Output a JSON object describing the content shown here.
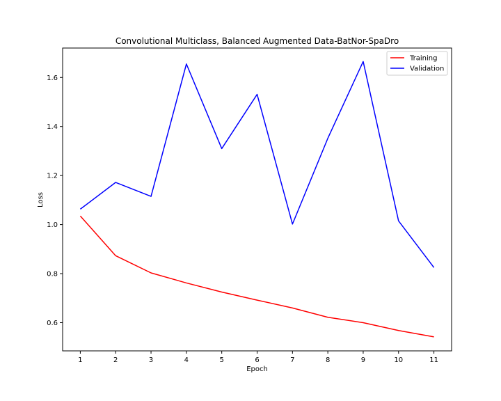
{
  "chart_data": {
    "type": "line",
    "title": "Convolutional Multiclass, Balanced Augmented Data-BatNor-SpaDro",
    "xlabel": "Epoch",
    "ylabel": "Loss",
    "x": [
      1,
      2,
      3,
      4,
      5,
      6,
      7,
      8,
      9,
      10,
      11
    ],
    "xlim": [
      0.5,
      11.5
    ],
    "ylim": [
      0.485,
      1.72
    ],
    "xticks": [
      1,
      2,
      3,
      4,
      5,
      6,
      7,
      8,
      9,
      10,
      11
    ],
    "yticks": [
      0.6,
      0.8,
      1.0,
      1.2,
      1.4,
      1.6
    ],
    "ytick_labels": [
      "0.6",
      "0.8",
      "1.0",
      "1.2",
      "1.4",
      "1.6"
    ],
    "grid": false,
    "legend_position": "top-right",
    "series": [
      {
        "name": "Training",
        "color": "#ff0000",
        "values": [
          1.035,
          0.873,
          0.803,
          0.762,
          0.725,
          0.692,
          0.66,
          0.622,
          0.6,
          0.568,
          0.542
        ]
      },
      {
        "name": "Validation",
        "color": "#0000ff",
        "values": [
          1.063,
          1.172,
          1.115,
          1.655,
          1.31,
          1.531,
          1.002,
          1.352,
          1.665,
          1.015,
          0.825
        ]
      }
    ]
  }
}
